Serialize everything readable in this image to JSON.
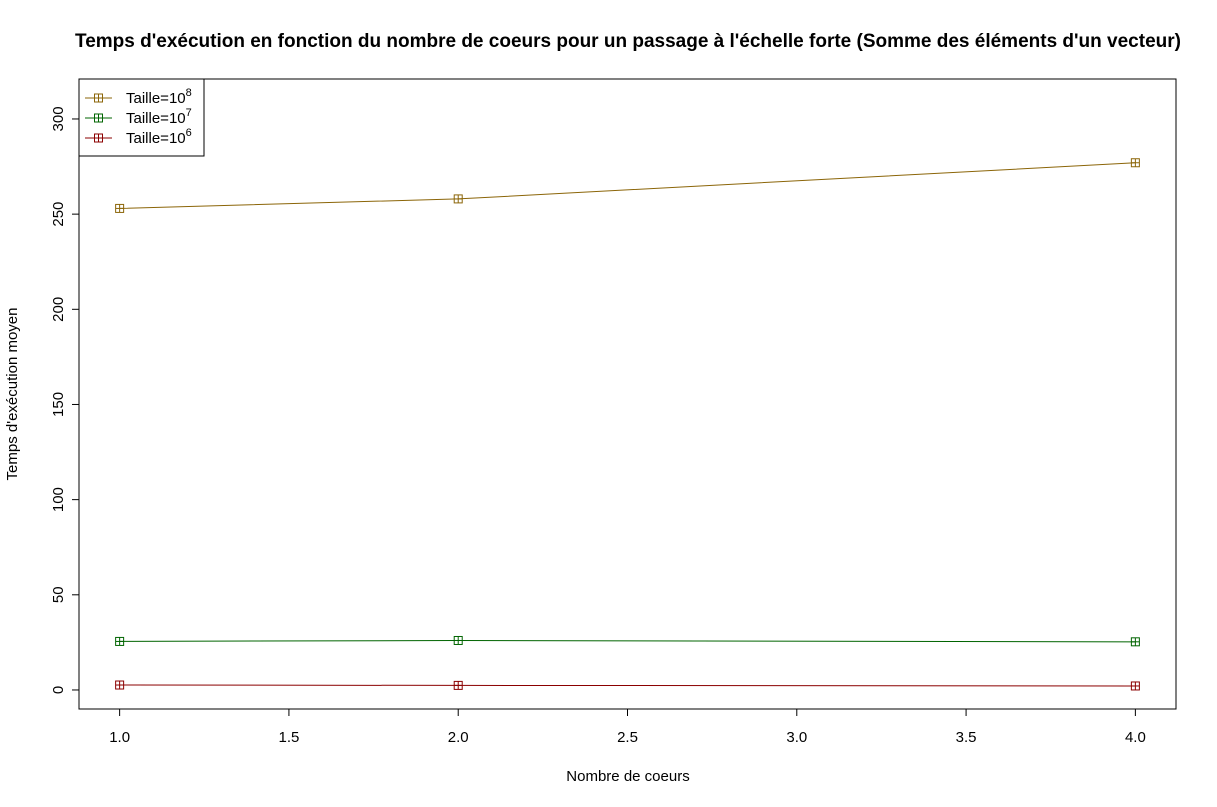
{
  "chart_data": {
    "type": "line",
    "title": "Temps d'exécution en fonction du nombre de coeurs pour un passage à l'échelle forte (Somme des éléments d'un vecteur)",
    "xlabel": "Nombre de coeurs",
    "ylabel": "Temps d'exécution moyen",
    "xlim": [
      0.88,
      4.12
    ],
    "ylim": [
      -10,
      321
    ],
    "x_ticks": [
      1.0,
      1.5,
      2.0,
      2.5,
      3.0,
      3.5,
      4.0
    ],
    "x_tick_labels": [
      "1.0",
      "1.5",
      "2.0",
      "2.5",
      "3.0",
      "3.5",
      "4.0"
    ],
    "y_ticks": [
      0,
      50,
      100,
      150,
      200,
      250,
      300
    ],
    "y_tick_labels": [
      "0",
      "50",
      "100",
      "150",
      "200",
      "250",
      "300"
    ],
    "grid": false,
    "legend_position": "top-left",
    "marker": "square-plus",
    "x": [
      1,
      2,
      4
    ],
    "series": [
      {
        "name": "Taille=10",
        "exponent": "8",
        "color": "#8B6508",
        "values": [
          253,
          258,
          277
        ]
      },
      {
        "name": "Taille=10",
        "exponent": "7",
        "color": "#006400",
        "values": [
          25.5,
          26,
          25.3
        ]
      },
      {
        "name": "Taille=10",
        "exponent": "6",
        "color": "#8B0000",
        "values": [
          2.6,
          2.4,
          2.1
        ]
      }
    ]
  }
}
